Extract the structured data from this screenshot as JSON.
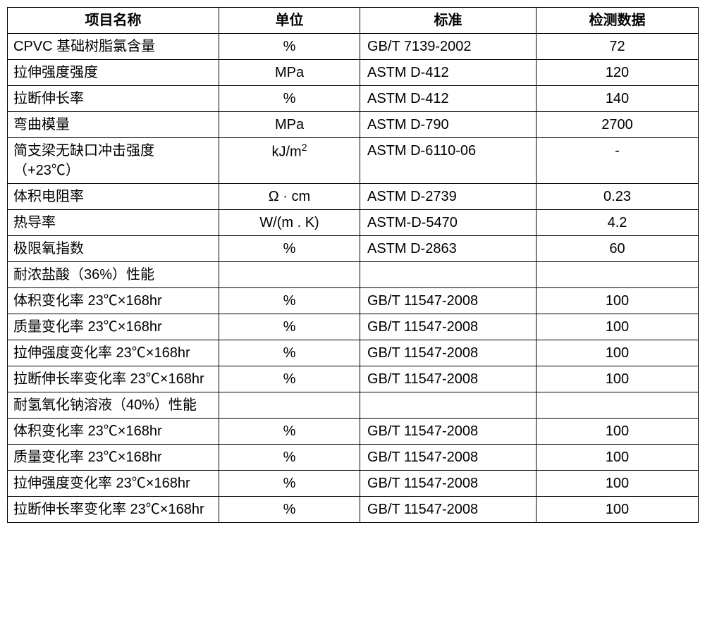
{
  "table": {
    "columns": [
      "项目名称",
      "单位",
      "标准",
      "检测数据"
    ],
    "col_align": [
      "left",
      "center",
      "left",
      "center"
    ],
    "rows": [
      [
        "CPVC 基础树脂氯含量",
        "%",
        "GB/T 7139-2002",
        "72"
      ],
      [
        "拉伸强度强度",
        "MPa",
        "ASTM D-412",
        "120"
      ],
      [
        "拉断伸长率",
        "%",
        "ASTM D-412",
        "140"
      ],
      [
        "弯曲模量",
        "MPa",
        "ASTM D-790",
        "2700"
      ],
      [
        "简支梁无缺口冲击强度（+23℃）",
        "kJ/m²",
        "ASTM D-6110-06",
        "-"
      ],
      [
        "体积电阻率",
        "Ω · cm",
        "ASTM D-2739",
        "0.23"
      ],
      [
        "热导率",
        "W/(m . K)",
        "ASTM-D-5470",
        "4.2"
      ],
      [
        "极限氧指数",
        "%",
        "ASTM D-2863",
        "60"
      ],
      [
        "耐浓盐酸（36%）性能",
        "",
        "",
        ""
      ],
      [
        "体积变化率 23℃×168hr",
        "%",
        "GB/T 11547-2008",
        "100"
      ],
      [
        "质量变化率 23℃×168hr",
        "%",
        "GB/T 11547-2008",
        "100"
      ],
      [
        "拉伸强度变化率  23℃×168hr",
        "%",
        "GB/T 11547-2008",
        "100"
      ],
      [
        "拉断伸长率变化率  23℃×168hr",
        "%",
        "GB/T 11547-2008",
        "100"
      ],
      [
        "耐氢氧化钠溶液（40%）性能",
        "",
        "",
        ""
      ],
      [
        "体积变化率 23℃×168hr",
        "%",
        "GB/T 11547-2008",
        "100"
      ],
      [
        "质量变化率 23℃×168hr",
        "%",
        "GB/T 11547-2008",
        "100"
      ],
      [
        "拉伸强度变化率  23℃×168hr",
        "%",
        "GB/T 11547-2008",
        "100"
      ],
      [
        "拉断伸长率变化率  23℃×168hr",
        "%",
        "GB/T 11547-2008",
        "100"
      ]
    ],
    "border_color": "#000000",
    "background_color": "#ffffff",
    "font_size_pt": 15,
    "header_font_weight": "bold"
  }
}
